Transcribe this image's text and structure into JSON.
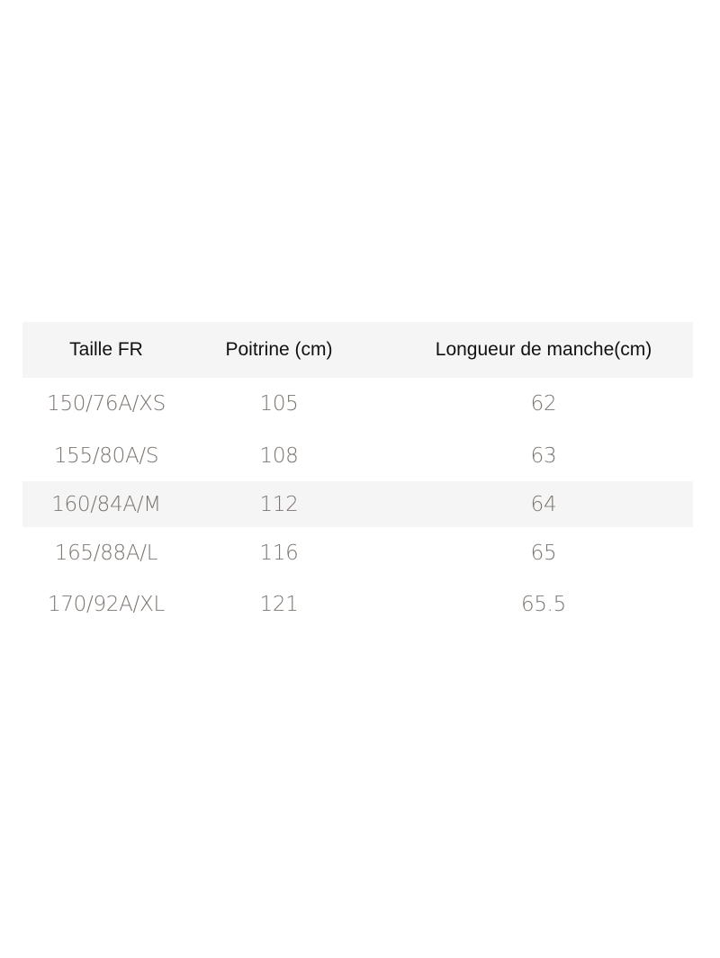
{
  "size_chart": {
    "headers": [
      "Taille FR",
      "Poitrine (cm)",
      "Longueur de manche(cm)"
    ],
    "rows": [
      [
        "150/76A/XS",
        "105",
        "62"
      ],
      [
        "155/80A/S",
        "108",
        "63"
      ],
      [
        "160/84A/M",
        "112",
        "64"
      ],
      [
        "165/88A/L",
        "116",
        "65"
      ],
      [
        "170/92A/XL",
        "121",
        "65.5"
      ]
    ],
    "shaded_row_index": 2,
    "colors": {
      "header_bg": "#f5f5f5",
      "header_text": "#111111",
      "body_text": "#7d7570"
    }
  }
}
